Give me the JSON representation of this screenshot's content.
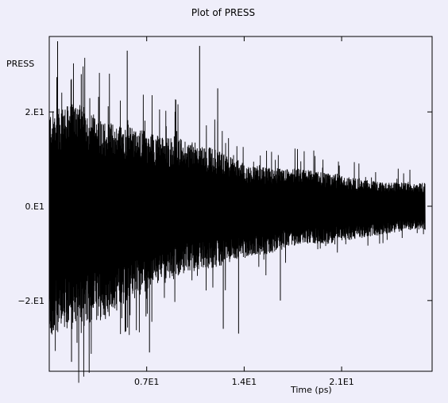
{
  "chart_data": {
    "type": "line",
    "title": "Plot of PRESS",
    "xlabel": "Time (ps)",
    "ylabel": "PRESS",
    "xlim": [
      0.0,
      27.5
    ],
    "ylim": [
      -35,
      36
    ],
    "x_ticks": [
      {
        "value": 7,
        "label": "0.7E1"
      },
      {
        "value": 14,
        "label": "1.4E1"
      },
      {
        "value": 21,
        "label": "2.1E1"
      }
    ],
    "y_ticks": [
      {
        "value": 20,
        "label": "2.E1"
      },
      {
        "value": 0,
        "label": "0.E1"
      },
      {
        "value": -20,
        "label": "-2.E1"
      }
    ],
    "grid": false,
    "series": [
      {
        "color": "#000000",
        "x_range": [
          0.0,
          27.0
        ],
        "envelope_x": [
          0,
          2,
          4,
          6,
          8,
          10,
          12,
          14,
          16,
          18,
          20,
          22,
          24,
          26,
          27
        ],
        "envelope_upper": [
          20,
          22,
          18,
          17,
          15,
          14,
          12,
          9,
          8,
          8,
          7,
          6,
          5,
          5,
          5
        ],
        "envelope_lower": [
          -28,
          -26,
          -24,
          -20,
          -16,
          -14,
          -13,
          -11,
          -10,
          -8,
          -8,
          -7,
          -6,
          -5,
          -5
        ],
        "peaks": [
          {
            "x": 0.6,
            "y": 35
          },
          {
            "x": 2.3,
            "y": 28
          },
          {
            "x": 5.6,
            "y": 33
          },
          {
            "x": 10.8,
            "y": 34
          },
          {
            "x": 12.1,
            "y": 25
          },
          {
            "x": 1.6,
            "y": -33
          },
          {
            "x": 7.2,
            "y": -31
          },
          {
            "x": 12.5,
            "y": -26
          },
          {
            "x": 13.6,
            "y": -27
          },
          {
            "x": 16.6,
            "y": -20
          }
        ]
      }
    ]
  }
}
